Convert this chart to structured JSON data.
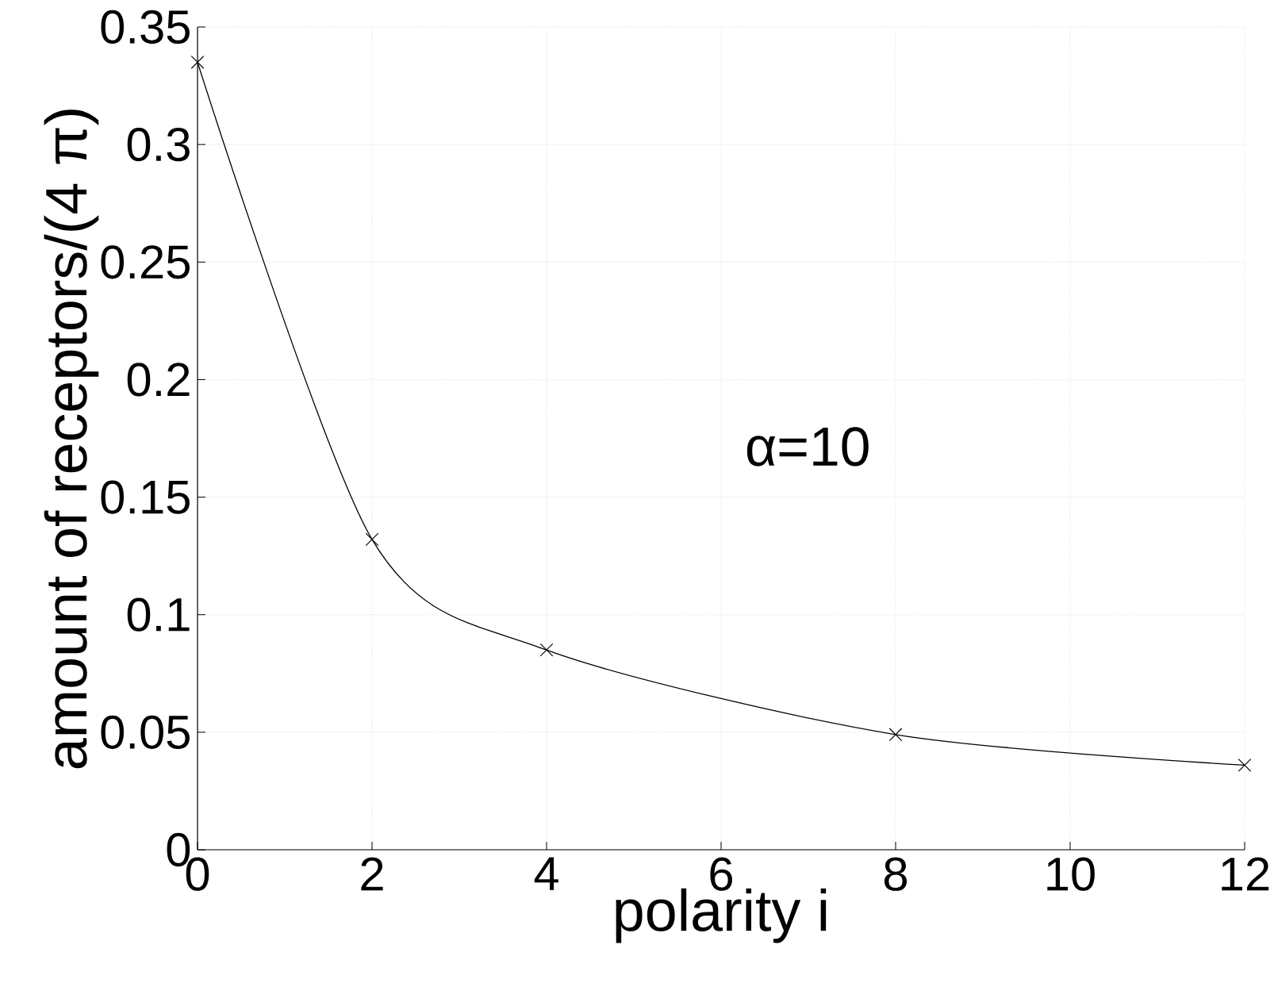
{
  "chart_data": {
    "type": "line",
    "xlabel": "polarity i",
    "ylabel": "amount of receptors/(4 π)",
    "x": [
      0,
      2,
      4,
      8,
      12
    ],
    "series": [
      {
        "color": "#000000",
        "values": [
          0.335,
          0.132,
          0.085,
          0.049,
          0.036
        ]
      }
    ],
    "xlim": [
      0,
      12
    ],
    "ylim": [
      0,
      0.35
    ],
    "xticks": [
      0,
      2,
      4,
      6,
      8,
      10,
      12
    ],
    "yticks": [
      0,
      0.05,
      0.1,
      0.15,
      0.2,
      0.25,
      0.3,
      0.35
    ],
    "grid": true,
    "marker": "cross",
    "line_style": "solid",
    "annotations": [
      "α=10"
    ]
  }
}
